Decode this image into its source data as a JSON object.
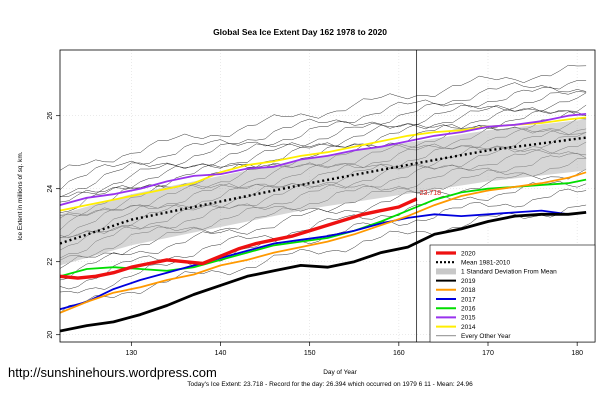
{
  "chart_data": {
    "type": "line",
    "title": "Global Sea Ice Extent Day 162 1978 to 2020",
    "xlabel": "Day of Year",
    "ylabel": "Ice Extent in millions of sq. km.",
    "xlim": [
      122,
      182
    ],
    "ylim": [
      19.8,
      27.8
    ],
    "x_ticks": [
      130,
      140,
      150,
      160,
      170,
      180
    ],
    "y_ticks": [
      20,
      22,
      24,
      26
    ],
    "grid": true,
    "legend_position": "bottom-right",
    "marker_day": 162,
    "end_label": "23.718",
    "band": {
      "name": "1 Standard Deviation From Mean",
      "x": [
        122,
        130,
        140,
        150,
        162,
        170,
        181
      ],
      "upper": [
        23.3,
        23.85,
        24.35,
        24.85,
        25.3,
        25.6,
        25.9
      ],
      "lower": [
        21.9,
        22.45,
        22.95,
        23.45,
        23.9,
        24.2,
        24.5
      ]
    },
    "mean": {
      "name": "Mean 1981-2010",
      "x": [
        122,
        130,
        140,
        150,
        162,
        170,
        181
      ],
      "y": [
        22.5,
        23.15,
        23.65,
        24.15,
        24.7,
        25.05,
        25.4
      ]
    },
    "series": [
      {
        "name": "2020",
        "color": "#ee1111",
        "width": 3.4,
        "x": [
          122,
          124,
          126,
          128,
          130,
          132,
          134,
          136,
          138,
          140,
          142,
          144,
          146,
          148,
          150,
          152,
          154,
          156,
          158,
          160,
          162
        ],
        "y": [
          21.6,
          21.55,
          21.6,
          21.7,
          21.85,
          21.95,
          22.05,
          22.0,
          21.95,
          22.15,
          22.35,
          22.5,
          22.6,
          22.7,
          22.85,
          23.0,
          23.15,
          23.3,
          23.4,
          23.5,
          23.72
        ]
      },
      {
        "name": "2019",
        "color": "#000000",
        "width": 2.8,
        "x": [
          122,
          125,
          128,
          131,
          134,
          137,
          140,
          143,
          146,
          149,
          152,
          155,
          158,
          161,
          164,
          167,
          170,
          173,
          176,
          179,
          181
        ],
        "y": [
          20.1,
          20.25,
          20.35,
          20.55,
          20.8,
          21.1,
          21.35,
          21.6,
          21.75,
          21.9,
          21.85,
          22.0,
          22.25,
          22.4,
          22.75,
          22.9,
          23.1,
          23.25,
          23.3,
          23.3,
          23.35
        ]
      },
      {
        "name": "2018",
        "color": "#ff9900",
        "width": 1.8,
        "x": [
          122,
          125,
          128,
          131,
          134,
          137,
          140,
          143,
          146,
          149,
          152,
          155,
          158,
          161,
          164,
          167,
          170,
          173,
          176,
          179,
          181
        ],
        "y": [
          20.6,
          20.9,
          21.15,
          21.3,
          21.5,
          21.65,
          21.9,
          22.05,
          22.25,
          22.4,
          22.55,
          22.75,
          23.0,
          23.25,
          23.55,
          23.8,
          23.95,
          24.05,
          24.15,
          24.3,
          24.45
        ]
      },
      {
        "name": "2017",
        "color": "#0000dd",
        "width": 1.8,
        "x": [
          122,
          125,
          128,
          131,
          134,
          137,
          140,
          143,
          146,
          149,
          152,
          155,
          158,
          161,
          164,
          167,
          170,
          173,
          176,
          179,
          181
        ],
        "y": [
          20.7,
          20.9,
          21.25,
          21.5,
          21.7,
          21.9,
          22.1,
          22.3,
          22.5,
          22.6,
          22.7,
          22.85,
          23.05,
          23.2,
          23.3,
          23.25,
          23.3,
          23.35,
          23.4,
          23.3,
          23.35
        ]
      },
      {
        "name": "2016",
        "color": "#00dd00",
        "width": 1.8,
        "x": [
          122,
          125,
          128,
          131,
          134,
          137,
          140,
          143,
          146,
          149,
          152,
          155,
          158,
          161,
          164,
          167,
          170,
          173,
          176,
          179,
          181
        ],
        "y": [
          21.6,
          21.8,
          21.85,
          21.8,
          21.75,
          21.85,
          22.05,
          22.25,
          22.45,
          22.55,
          22.65,
          22.85,
          23.1,
          23.4,
          23.7,
          23.9,
          24.0,
          24.05,
          24.1,
          24.15,
          24.25
        ]
      },
      {
        "name": "2015",
        "color": "#9933ee",
        "width": 1.8,
        "x": [
          122,
          125,
          128,
          131,
          134,
          137,
          140,
          143,
          146,
          149,
          152,
          155,
          158,
          161,
          164,
          167,
          170,
          173,
          176,
          179,
          181
        ],
        "y": [
          23.55,
          23.75,
          23.85,
          24.0,
          24.2,
          24.35,
          24.4,
          24.55,
          24.6,
          24.8,
          24.9,
          25.05,
          25.15,
          25.3,
          25.45,
          25.55,
          25.7,
          25.75,
          25.85,
          26.0,
          26.05
        ]
      },
      {
        "name": "2014",
        "color": "#ffee00",
        "width": 1.8,
        "x": [
          122,
          125,
          128,
          131,
          134,
          137,
          140,
          143,
          146,
          149,
          152,
          155,
          158,
          161,
          164,
          167,
          170,
          173,
          176,
          179,
          181
        ],
        "y": [
          23.4,
          23.55,
          23.7,
          23.85,
          24.0,
          24.15,
          24.45,
          24.65,
          24.75,
          24.9,
          25.0,
          25.15,
          25.3,
          25.45,
          25.55,
          25.6,
          25.7,
          25.75,
          25.8,
          25.9,
          25.95
        ]
      }
    ],
    "legend": [
      {
        "label": "2020",
        "color": "#ee1111",
        "style": "thick"
      },
      {
        "label": "Mean 1981-2010",
        "color": "#000000",
        "style": "dotted"
      },
      {
        "label": "1 Standard Deviation From Mean",
        "color": "#c8c8c8",
        "style": "box"
      },
      {
        "label": "2019",
        "color": "#000000",
        "style": "line"
      },
      {
        "label": "2018",
        "color": "#ff9900",
        "style": "line"
      },
      {
        "label": "2017",
        "color": "#0000dd",
        "style": "line"
      },
      {
        "label": "2016",
        "color": "#00dd00",
        "style": "line"
      },
      {
        "label": "2015",
        "color": "#9933ee",
        "style": "line"
      },
      {
        "label": "2014",
        "color": "#ffee00",
        "style": "line"
      },
      {
        "label": "Every Other Year",
        "color": "#444444",
        "style": "thin"
      }
    ]
  },
  "source_url": "http://sunshinehours.wordpress.com",
  "footer": "Today's Ice Extent: 23.718  - Record for the day: 26.394 which occurred on 1979 6 11  - Mean: 24.96"
}
